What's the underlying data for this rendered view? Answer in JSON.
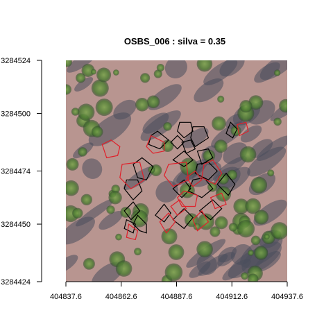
{
  "chart_data": {
    "type": "map",
    "title": "OSBS_006 : silva = 0.35",
    "xlabel": "",
    "ylabel": "",
    "x_ticks": [
      "404837.6",
      "404862.6",
      "404887.6",
      "404912.6",
      "404937.6"
    ],
    "y_ticks": [
      "3284424",
      "3284450",
      "3284474",
      "3284500",
      "3284524"
    ],
    "xlim": [
      404837.6,
      404937.6
    ],
    "ylim": [
      3284424,
      3284524
    ],
    "background": "aerial RGB orthophoto of pine forest canopy",
    "series": [],
    "colors": {
      "outline_a": "#000000",
      "outline_b": "#e0202a",
      "canopy_green": "#5e8a3c",
      "ground_pink": "#b89590",
      "shadow_gray": "#4a4e5c"
    },
    "crowns_a": [
      [
        {
          "x": 404864,
          "y": 3284466
        },
        {
          "x": 404868,
          "y": 3284461
        },
        {
          "x": 404872,
          "y": 3284465
        },
        {
          "x": 404870,
          "y": 3284470
        },
        {
          "x": 404865,
          "y": 3284470
        }
      ],
      [
        {
          "x": 404874,
          "y": 3284470
        },
        {
          "x": 404877,
          "y": 3284476
        },
        {
          "x": 404872,
          "y": 3284480
        },
        {
          "x": 404868,
          "y": 3284477
        },
        {
          "x": 404870,
          "y": 3284471
        }
      ],
      [
        {
          "x": 404864,
          "y": 3284456
        },
        {
          "x": 404867,
          "y": 3284452
        },
        {
          "x": 404871,
          "y": 3284456
        },
        {
          "x": 404868,
          "y": 3284460
        }
      ],
      [
        {
          "x": 404870,
          "y": 3284454
        },
        {
          "x": 404874,
          "y": 3284450
        },
        {
          "x": 404874,
          "y": 3284446
        },
        {
          "x": 404871,
          "y": 3284447
        },
        {
          "x": 404868,
          "y": 3284450
        }
      ],
      [
        {
          "x": 404864,
          "y": 3284448
        },
        {
          "x": 404868,
          "y": 3284446
        },
        {
          "x": 404869,
          "y": 3284450
        },
        {
          "x": 404865,
          "y": 3284452
        }
      ],
      [
        {
          "x": 404875,
          "y": 3284486
        },
        {
          "x": 404880,
          "y": 3284484
        },
        {
          "x": 404884,
          "y": 3284488
        },
        {
          "x": 404879,
          "y": 3284492
        },
        {
          "x": 404876,
          "y": 3284490
        }
      ],
      [
        {
          "x": 404891,
          "y": 3284489
        },
        {
          "x": 404895,
          "y": 3284492
        },
        {
          "x": 404894,
          "y": 3284496
        },
        {
          "x": 404889,
          "y": 3284496
        },
        {
          "x": 404888,
          "y": 3284492
        }
      ],
      [
        {
          "x": 404896,
          "y": 3284485
        },
        {
          "x": 404902,
          "y": 3284489
        },
        {
          "x": 404900,
          "y": 3284494
        },
        {
          "x": 404895,
          "y": 3284494
        },
        {
          "x": 404894,
          "y": 3284489
        }
      ],
      [
        {
          "x": 404888,
          "y": 3284484
        },
        {
          "x": 404891,
          "y": 3284487
        },
        {
          "x": 404888,
          "y": 3284490
        },
        {
          "x": 404885,
          "y": 3284487
        }
      ],
      [
        {
          "x": 404892,
          "y": 3284482
        },
        {
          "x": 404896,
          "y": 3284484
        },
        {
          "x": 404894,
          "y": 3284488
        },
        {
          "x": 404890,
          "y": 3284487
        }
      ],
      [
        {
          "x": 404899,
          "y": 3284477
        },
        {
          "x": 404904,
          "y": 3284480
        },
        {
          "x": 404902,
          "y": 3284484
        },
        {
          "x": 404897,
          "y": 3284483
        }
      ],
      [
        {
          "x": 404886,
          "y": 3284479
        },
        {
          "x": 404891,
          "y": 3284476
        },
        {
          "x": 404895,
          "y": 3284479
        },
        {
          "x": 404891,
          "y": 3284483
        }
      ],
      [
        {
          "x": 404896,
          "y": 3284473
        },
        {
          "x": 404902,
          "y": 3284470
        },
        {
          "x": 404906,
          "y": 3284474
        },
        {
          "x": 404902,
          "y": 3284478
        },
        {
          "x": 404897,
          "y": 3284477
        }
      ],
      [
        {
          "x": 404886,
          "y": 3284466
        },
        {
          "x": 404890,
          "y": 3284462
        },
        {
          "x": 404894,
          "y": 3284466
        },
        {
          "x": 404891,
          "y": 3284470
        }
      ],
      [
        {
          "x": 404893,
          "y": 3284465
        },
        {
          "x": 404899,
          "y": 3284462
        },
        {
          "x": 404904,
          "y": 3284466
        },
        {
          "x": 404900,
          "y": 3284471
        },
        {
          "x": 404895,
          "y": 3284470
        }
      ],
      [
        {
          "x": 404898,
          "y": 3284456
        },
        {
          "x": 404903,
          "y": 3284452
        },
        {
          "x": 404908,
          "y": 3284457
        },
        {
          "x": 404904,
          "y": 3284461
        }
      ],
      [
        {
          "x": 404886,
          "y": 3284452
        },
        {
          "x": 404891,
          "y": 3284448
        },
        {
          "x": 404895,
          "y": 3284453
        },
        {
          "x": 404891,
          "y": 3284457
        }
      ],
      [
        {
          "x": 404878,
          "y": 3284454
        },
        {
          "x": 404882,
          "y": 3284451
        },
        {
          "x": 404885,
          "y": 3284455
        },
        {
          "x": 404882,
          "y": 3284459
        }
      ],
      [
        {
          "x": 404910,
          "y": 3284491
        },
        {
          "x": 404913,
          "y": 3284489
        },
        {
          "x": 404915,
          "y": 3284493
        },
        {
          "x": 404912,
          "y": 3284496
        }
      ],
      [
        {
          "x": 404906,
          "y": 3284468
        },
        {
          "x": 404911,
          "y": 3284463
        },
        {
          "x": 404914,
          "y": 3284468
        },
        {
          "x": 404910,
          "y": 3284473
        }
      ]
    ],
    "crowns_b": [
      [
        {
          "x": 404863,
          "y": 3284477
        },
        {
          "x": 404871,
          "y": 3284478
        },
        {
          "x": 404873,
          "y": 3284470
        },
        {
          "x": 404867,
          "y": 3284466
        },
        {
          "x": 404862,
          "y": 3284471
        }
      ],
      [
        {
          "x": 404854,
          "y": 3284486
        },
        {
          "x": 404858,
          "y": 3284488
        },
        {
          "x": 404862,
          "y": 3284485
        },
        {
          "x": 404861,
          "y": 3284481
        },
        {
          "x": 404856,
          "y": 3284480
        }
      ],
      [
        {
          "x": 404876,
          "y": 3284490
        },
        {
          "x": 404882,
          "y": 3284487
        },
        {
          "x": 404882,
          "y": 3284483
        },
        {
          "x": 404877,
          "y": 3284482
        },
        {
          "x": 404874,
          "y": 3284485
        }
      ],
      [
        {
          "x": 404884,
          "y": 3284477
        },
        {
          "x": 404892,
          "y": 3284478
        },
        {
          "x": 404893,
          "y": 3284470
        },
        {
          "x": 404886,
          "y": 3284467
        },
        {
          "x": 404882,
          "y": 3284472
        }
      ],
      [
        {
          "x": 404904,
          "y": 3284479
        },
        {
          "x": 404908,
          "y": 3284473
        },
        {
          "x": 404905,
          "y": 3284468
        },
        {
          "x": 404899,
          "y": 3284471
        },
        {
          "x": 404900,
          "y": 3284477
        }
      ],
      [
        {
          "x": 404891,
          "y": 3284465
        },
        {
          "x": 404897,
          "y": 3284463
        },
        {
          "x": 404896,
          "y": 3284458
        },
        {
          "x": 404890,
          "y": 3284458
        },
        {
          "x": 404888,
          "y": 3284462
        }
      ],
      [
        {
          "x": 404895,
          "y": 3284452
        },
        {
          "x": 404899,
          "y": 3284456
        },
        {
          "x": 404902,
          "y": 3284451
        },
        {
          "x": 404897,
          "y": 3284447
        }
      ],
      [
        {
          "x": 404880,
          "y": 3284451
        },
        {
          "x": 404884,
          "y": 3284455
        },
        {
          "x": 404887,
          "y": 3284451
        },
        {
          "x": 404883,
          "y": 3284446
        }
      ],
      [
        {
          "x": 404866,
          "y": 3284450
        },
        {
          "x": 404870,
          "y": 3284447
        },
        {
          "x": 404869,
          "y": 3284443
        },
        {
          "x": 404865,
          "y": 3284444
        }
      ],
      [
        {
          "x": 404915,
          "y": 3284495
        },
        {
          "x": 404919,
          "y": 3284496
        },
        {
          "x": 404920,
          "y": 3284492
        },
        {
          "x": 404916,
          "y": 3284490
        }
      ],
      [
        {
          "x": 404892,
          "y": 3284471
        },
        {
          "x": 404896,
          "y": 3284474
        },
        {
          "x": 404899,
          "y": 3284470
        },
        {
          "x": 404895,
          "y": 3284467
        }
      ],
      [
        {
          "x": 404885,
          "y": 3284458
        },
        {
          "x": 404889,
          "y": 3284461
        },
        {
          "x": 404892,
          "y": 3284457
        },
        {
          "x": 404888,
          "y": 3284454
        }
      ],
      [
        {
          "x": 404903,
          "y": 3284462
        },
        {
          "x": 404908,
          "y": 3284464
        },
        {
          "x": 404910,
          "y": 3284459
        },
        {
          "x": 404905,
          "y": 3284457
        }
      ]
    ]
  }
}
